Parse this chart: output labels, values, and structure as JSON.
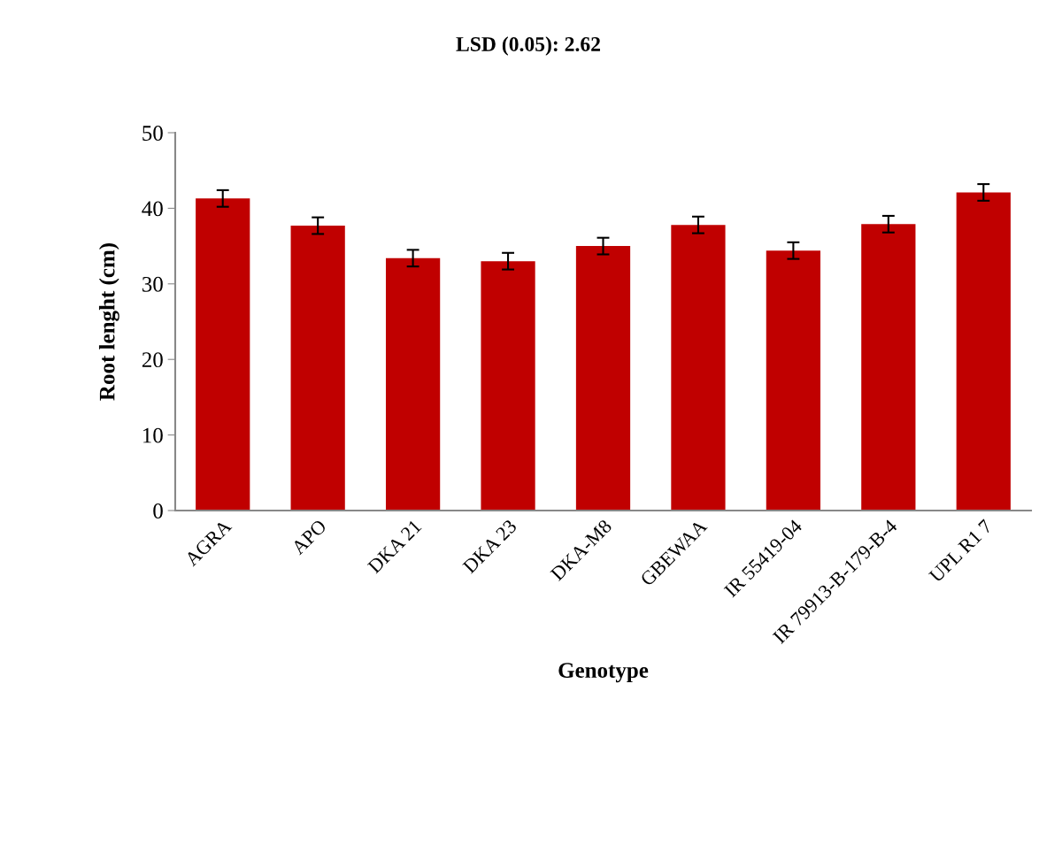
{
  "chart_data": {
    "type": "bar",
    "title": "LSD (0.05): 2.62",
    "xlabel": "Genotype",
    "ylabel": "Root lenght (cm)",
    "categories": [
      "AGRA",
      "APO",
      "DKA 21",
      "DKA 23",
      "DKA-M8",
      "GBEWAA",
      "IR 55419-04",
      "IR 79913-B-179-B-4",
      "UPL R1 7"
    ],
    "values": [
      41.3,
      37.7,
      33.4,
      33.0,
      35.0,
      37.8,
      34.4,
      37.9,
      42.1
    ],
    "errors": [
      1.1,
      1.1,
      1.1,
      1.1,
      1.1,
      1.1,
      1.1,
      1.1,
      1.1
    ],
    "color": "#c00000",
    "ylim": [
      0,
      50
    ],
    "yticks": [
      0,
      10,
      20,
      30,
      40,
      50
    ],
    "grid": false
  }
}
